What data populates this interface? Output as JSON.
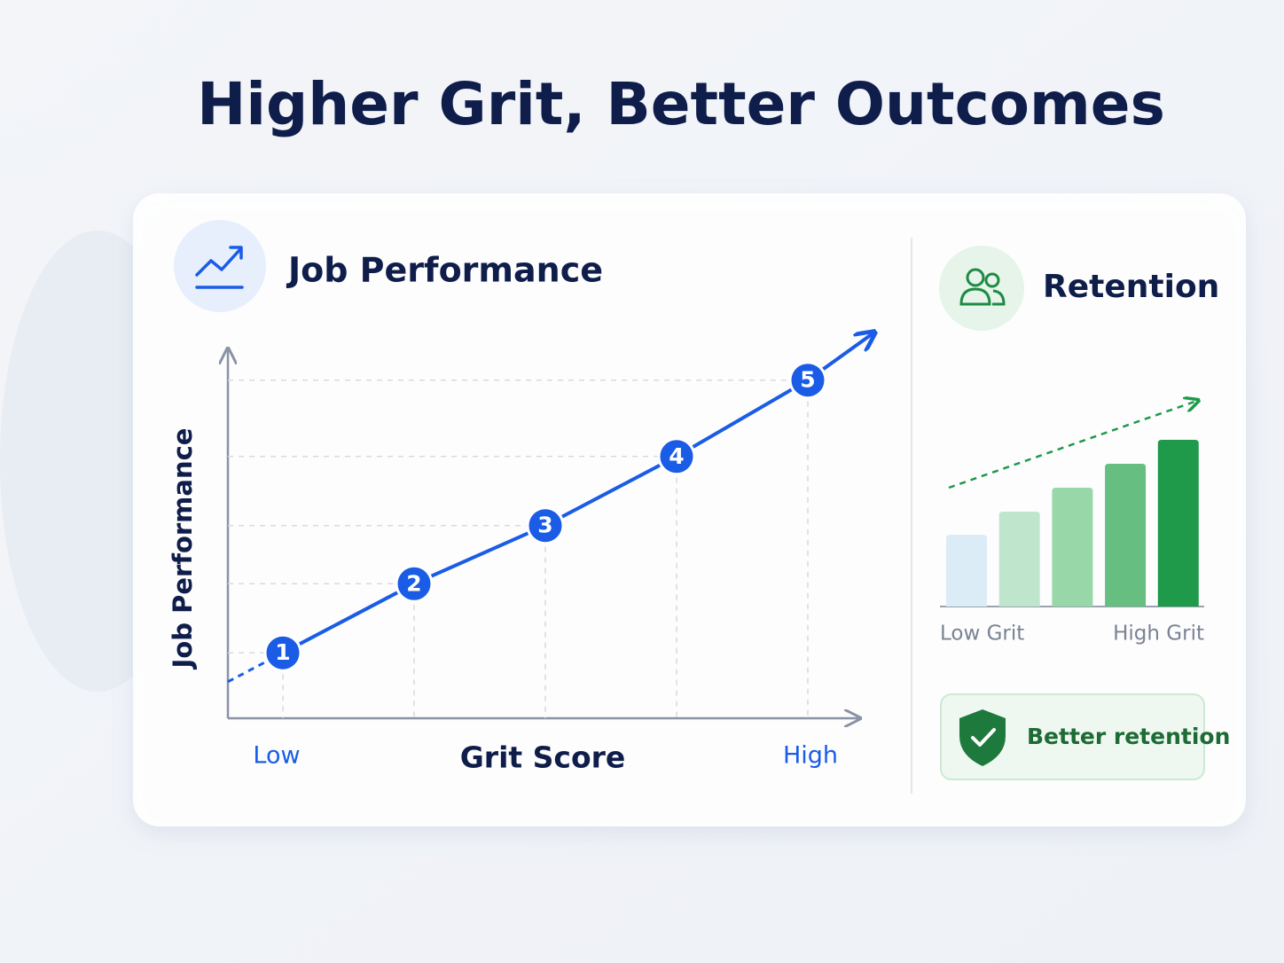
{
  "title": "Higher Grit, Better Outcomes",
  "chart_data": [
    {
      "type": "line",
      "title": "Job Performance",
      "ylabel": "Job Performance",
      "xlabel": "Grit Score",
      "x_start_label": "Low",
      "x_end_label": "High",
      "categories": [
        "1",
        "2",
        "3",
        "4",
        "5"
      ],
      "values": [
        18,
        37,
        53,
        72,
        93
      ],
      "color": "#1a5ce6",
      "ylim": [
        0,
        100
      ],
      "grid": true
    },
    {
      "type": "bar",
      "title": "Retention",
      "categories": [
        null,
        null,
        null,
        null,
        null
      ],
      "values": [
        81,
        107,
        134,
        161,
        188
      ],
      "colors": [
        "#dcecf6",
        "#bfe6cc",
        "#98d8a8",
        "#66bf80",
        "#1e9a4a"
      ],
      "ylim": [
        0,
        200
      ],
      "x_start_label": "Low Grit",
      "x_end_label": "High Grit",
      "badge": "Better retention"
    }
  ]
}
